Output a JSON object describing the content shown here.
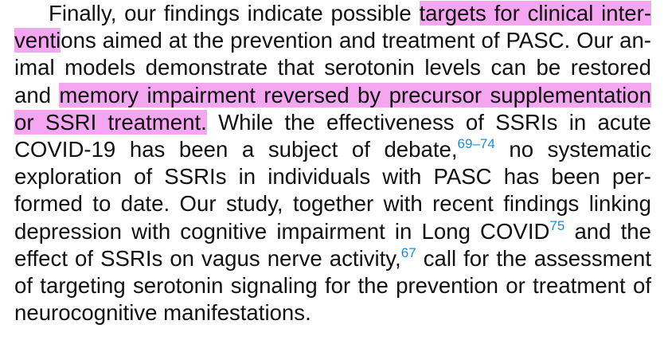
{
  "highlight_color": "#f4a6f0",
  "citation_color": "#1a8fd6",
  "lines": [
    {
      "pre": "Finally, our findings indicate possible ",
      "hl": "targets for clinical inter-"
    },
    {
      "hl": "venti",
      "post": "ons aimed at the prevention and treatment of PASC. Our an-"
    },
    {
      "text": "imal models demonstrate that serotonin levels can be restored"
    },
    {
      "pre": "and ",
      "hl": "memory impairment reversed by precursor supplementation"
    },
    {
      "hl": "or SSRI treatment.",
      "post": " While the effectiveness of SSRIs in acute"
    },
    {
      "pre": "COVID-19 has been a subject of debate,",
      "ref": "69–74",
      "post": " no systematic"
    },
    {
      "text": "exploration of SSRIs in individuals with PASC has been per-"
    },
    {
      "text": "formed to date. Our study, together with recent findings linking"
    },
    {
      "pre": "depression with cognitive impairment in Long COVID",
      "ref": "75",
      "post": " and the"
    },
    {
      "pre": "effect of SSRIs on vagus nerve activity,",
      "ref": "67",
      "post": " call for the assessment"
    },
    {
      "text": "of targeting serotonin signaling for the prevention or treatment of"
    },
    {
      "text": "neurocognitive manifestations."
    }
  ]
}
